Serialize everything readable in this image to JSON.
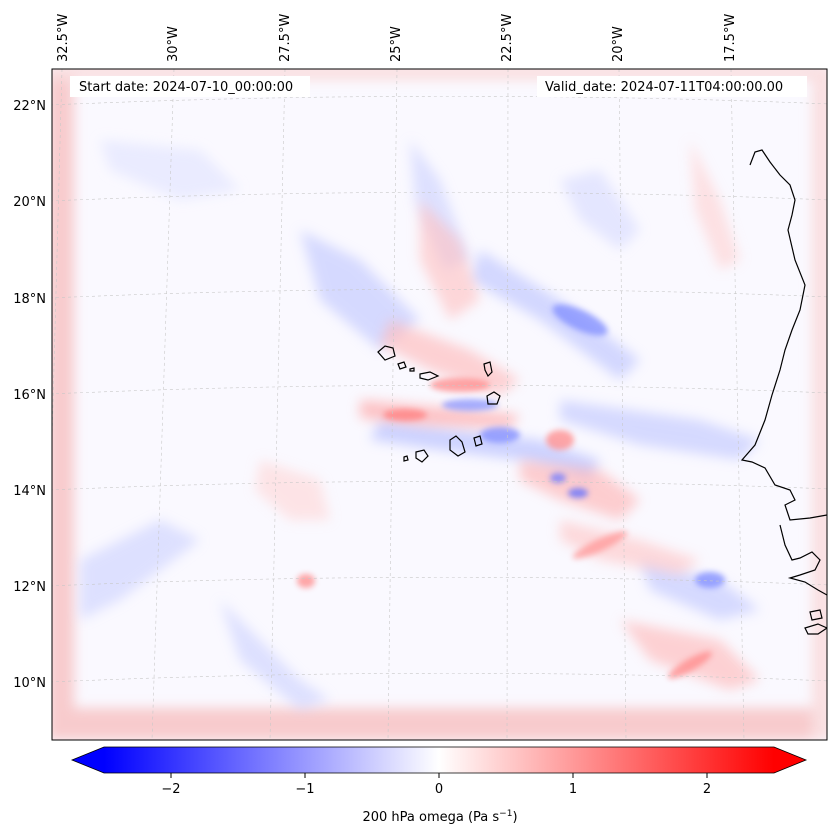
{
  "map": {
    "start_date_label": "Start date: 2024-07-10_00:00:00",
    "valid_date_label": "Valid_date: 2024-07-11T04:00:00.00",
    "lon_labels": [
      "32.5°W",
      "30°W",
      "27.5°W",
      "25°W",
      "22.5°W",
      "20°W",
      "17.5°W"
    ],
    "lat_labels": [
      "22°N",
      "20°N",
      "18°N",
      "16°N",
      "14°N",
      "12°N",
      "10°N"
    ],
    "gridlines": true,
    "projection": "lambert-conformal",
    "region": "Cape Verde / West African coast"
  },
  "colorbar": {
    "title_main": "200 hPa omega (Pa s",
    "title_exp": "−1",
    "title_end": ")",
    "ticks": [
      "−2",
      "−1",
      "0",
      "1",
      "2"
    ],
    "range": [
      -2.5,
      2.5
    ],
    "colormap": "bwr",
    "extend": "both",
    "colors": {
      "min": "#0000ff",
      "mid": "#ffffff",
      "max": "#ff0000"
    }
  }
}
